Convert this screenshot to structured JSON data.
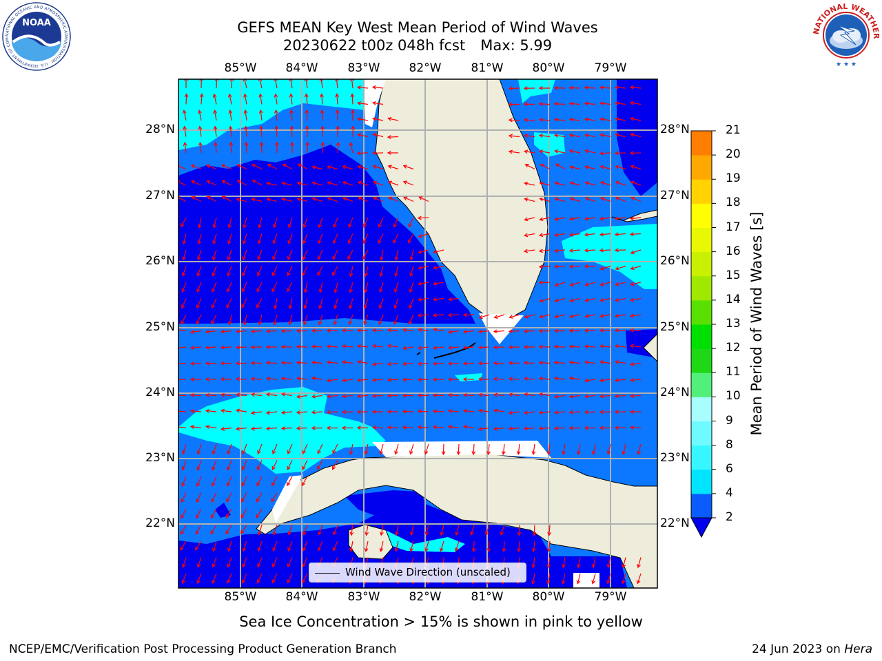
{
  "title": {
    "line1": "GEFS MEAN Key West Mean Period of Wind Waves",
    "line2_run": "20230622 t00z 048h fcst",
    "line2_max": "Max: 5.99"
  },
  "logos": {
    "left": "NOAA",
    "left_ring": "NATIONAL OCEANIC AND ATMOSPHERIC ADMINISTRATION · U.S. DEPARTMENT OF COMMERCE",
    "right_ring": "NATIONAL WEATHER SERVICE"
  },
  "map": {
    "lon_labels": [
      "85°W",
      "84°W",
      "83°W",
      "82°W",
      "81°W",
      "80°W",
      "79°W"
    ],
    "lat_labels": [
      "28°N",
      "27°N",
      "26°N",
      "25°N",
      "24°N",
      "23°N",
      "22°N"
    ],
    "legend_label": "Wind Wave Direction (unscaled)",
    "colors": {
      "land": "#eeecdb",
      "level_0_2": "#0000ee",
      "level_2_4": "#0b78ff",
      "level_4_6": "#00ffff",
      "no_data": "#ffffff",
      "grid": "#b0b0b0",
      "arrow": "#ff0000"
    }
  },
  "colorbar": {
    "title": "Mean Period of Wind Waves [s]",
    "ticks": [
      "2",
      "4",
      "6",
      "8",
      "9",
      "10",
      "11",
      "12",
      "13",
      "14",
      "15",
      "16",
      "17",
      "18",
      "19",
      "20",
      "21"
    ],
    "colors": [
      "#0b5cff",
      "#00e4ff",
      "#38f6ff",
      "#6ffaff",
      "#a8fdff",
      "#52f07a",
      "#1ed818",
      "#00e000",
      "#5ae000",
      "#a0e800",
      "#c8f000",
      "#e8f800",
      "#ffff00",
      "#ffd200",
      "#ffa800",
      "#ff7e00",
      "#ff4600",
      "#ff1400"
    ],
    "under_color": "#0000ee"
  },
  "ice_note": "Sea Ice Concentration > 15% is shown in pink to yellow",
  "footer": {
    "left": "NCEP/EMC/Verification Post Processing Product Generation Branch",
    "right_date": "24 Jun 2023 on",
    "right_host": "Hera"
  }
}
